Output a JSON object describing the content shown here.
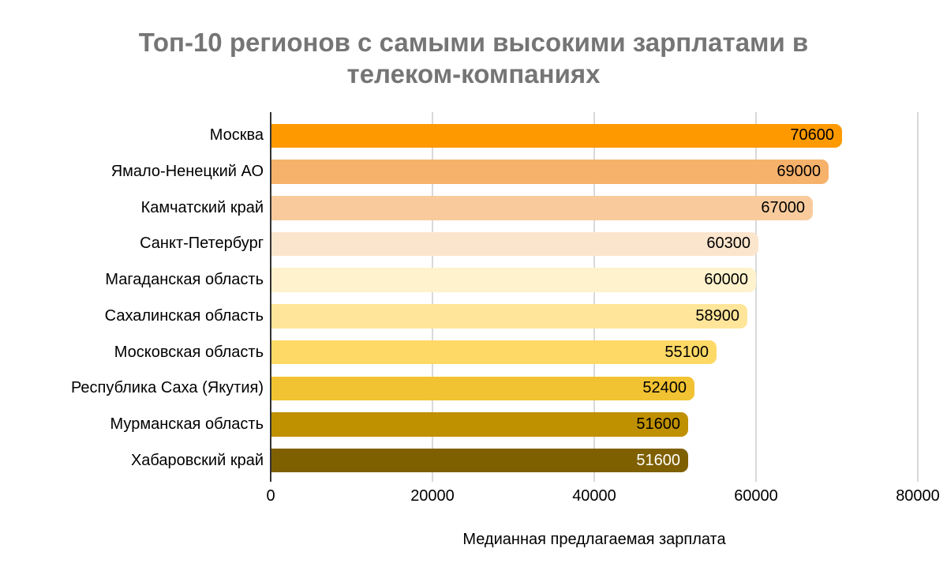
{
  "page": {
    "background": "#ffffff"
  },
  "chart_data": {
    "type": "bar",
    "orientation": "horizontal",
    "title": "Топ-10 регионов с самыми высокими зарплатами в\nтелеком-компаниях",
    "title_color": "#757575",
    "xlabel": "Медианная предлагаемая зарплата",
    "categories": [
      "Москва",
      "Ямало-Ненецкий АО",
      "Камчатский край",
      "Санкт-Петербург",
      "Магаданская область",
      "Сахалинская область",
      "Московская область",
      "Республика Саха (Якутия)",
      "Мурманская область",
      "Хабаровский край"
    ],
    "values": [
      70600,
      69000,
      67000,
      60300,
      60000,
      58900,
      55100,
      52400,
      51600,
      51600
    ],
    "bar_colors": [
      "#FF9900",
      "#F6B26B",
      "#F9CB9C",
      "#FCE5CD",
      "#FFF2CC",
      "#FFE599",
      "#FFD966",
      "#F1C232",
      "#BF9000",
      "#7F6000"
    ],
    "value_label_colors": [
      "#000000",
      "#000000",
      "#000000",
      "#000000",
      "#000000",
      "#000000",
      "#000000",
      "#000000",
      "#000000",
      "#FFFFFF"
    ],
    "xlim": [
      0,
      80000
    ],
    "xticks": [
      0,
      20000,
      40000,
      60000,
      80000
    ],
    "xtick_labels": [
      "0",
      "20000",
      "40000",
      "60000",
      "80000"
    ],
    "grid": true,
    "legend": "none",
    "gridline_color": "#D9D9D9",
    "axis_line_color": "#333333"
  }
}
